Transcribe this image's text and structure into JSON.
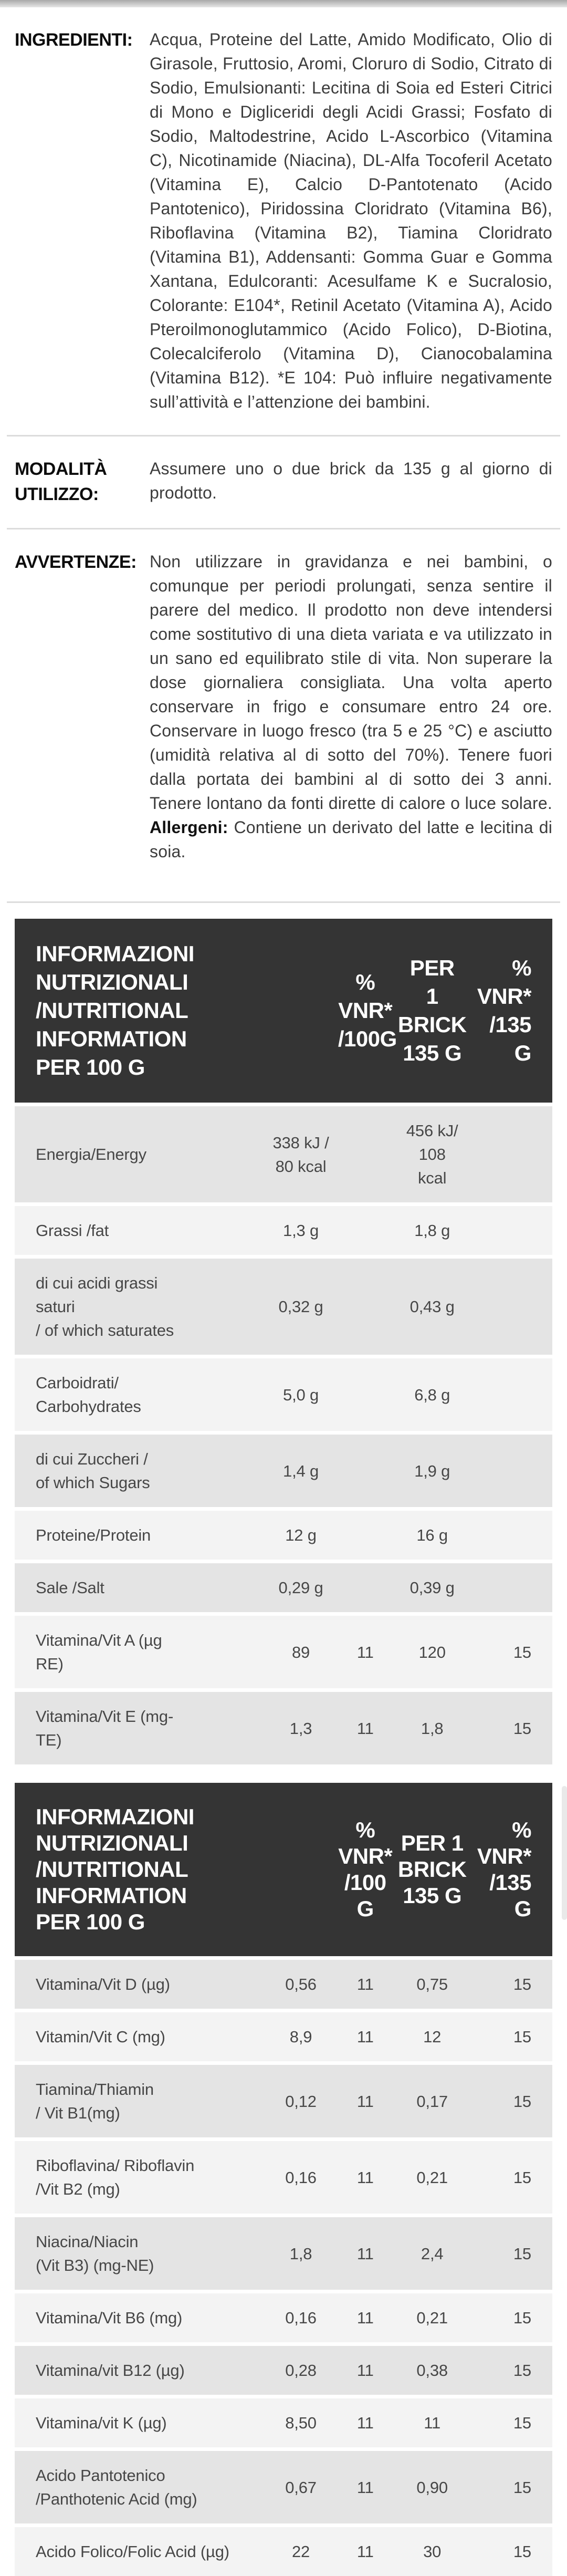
{
  "sections": {
    "ingredienti": {
      "label": "INGREDIENTI:",
      "text": "Acqua, Proteine del Latte, Amido Modificato, Olio di Girasole, Fruttosio, Aromi, Cloruro di Sodio, Citrato di Sodio, Emulsionanti: Lecitina di Soia ed Esteri Citrici di Mono e Digliceridi degli Acidi Grassi; Fosfato di Sodio, Maltodestrine, Acido L-Ascorbico (Vitamina C), Nicotinamide (Niacina), DL-Alfa Tocoferil Acetato (Vitamina E), Calcio D-Pantotenato (Acido Pantotenico), Piridossina Cloridrato (Vitamina B6), Riboflavina (Vitamina B2), Tiamina Cloridrato (Vitamina B1), Addensanti: Gomma Guar e Gomma Xantana, Edulcoranti: Acesulfame K e Sucralosio, Colorante: E104*, Retinil Acetato (Vitamina A), Acido Pteroilmonoglutammico (Acido Folico), D-Biotina, Colecalciferolo (Vitamina D), Cianocobalamina (Vitamina B12). *E 104: Può influire negativamente sull’attività e l’attenzione dei bambini."
    },
    "modalita": {
      "label": "MODALITÀ UTILIZZO:",
      "text": "Assumere uno o due brick da 135 g al giorno di prodotto."
    },
    "avvertenze": {
      "label": "AVVERTENZE:",
      "text": "Non utilizzare in gravidanza e nei bambini, o comunque per periodi prolungati, senza sentire il parere del medico. Il prodotto non deve intendersi come sostitutivo di una dieta variata e va utilizzato in un sano ed equilibrato stile di vita. Non superare la dose giornaliera consigliata. Una volta aperto conservare in frigo e consumare entro 24 ore. Conservare in luogo fresco (tra 5 e 25 °C) e asciutto (umidità relativa al di sotto del 70%). Tenere fuori dalla portata dei bambini al di sotto dei 3 anni. Tenere lontano da fonti dirette di calore o luce solare. ",
      "allergeni_label": "Allergeni:",
      "allergeni_text": " Contiene un derivato del latte e lecitina di soia."
    }
  },
  "tables": [
    {
      "header": {
        "main": "INFORMAZIONI NUTRIZIONALI\n/NUTRITIONAL INFORMATION\nPER 100 G",
        "vnr100": "%\nVNR*\n/100G",
        "brick": "PER\n1 BRICK\n135 G",
        "vnr135": "%\nVNR*\n/135 G"
      },
      "rows": [
        {
          "label": "Energia/Energy",
          "per100": "338 kJ /\n80 kcal",
          "vnr100": "",
          "brick": "456 kJ/ 108\nkcal",
          "vnr135": ""
        },
        {
          "label": "Grassi /fat",
          "per100": "1,3 g",
          "vnr100": "",
          "brick": "1,8 g",
          "vnr135": ""
        },
        {
          "label": "di cui acidi grassi\nsaturi\n/ of which saturates",
          "per100": "0,32 g",
          "vnr100": "",
          "brick": "0,43 g",
          "vnr135": ""
        },
        {
          "label": "Carboidrati/\nCarbohydrates",
          "per100": "5,0 g",
          "vnr100": "",
          "brick": "6,8 g",
          "vnr135": ""
        },
        {
          "label": "di cui Zuccheri /\nof which Sugars",
          "per100": "1,4 g",
          "vnr100": "",
          "brick": "1,9 g",
          "vnr135": ""
        },
        {
          "label": "Proteine/Protein",
          "per100": "12 g",
          "vnr100": "",
          "brick": "16 g",
          "vnr135": ""
        },
        {
          "label": "Sale /Salt",
          "per100": "0,29 g",
          "vnr100": "",
          "brick": "0,39 g",
          "vnr135": ""
        },
        {
          "label": "Vitamina/Vit A (µg\nRE)",
          "per100": "89",
          "vnr100": "11",
          "brick": "120",
          "vnr135": "15"
        },
        {
          "label": "Vitamina/Vit E (mg-\nTE)",
          "per100": "1,3",
          "vnr100": "11",
          "brick": "1,8",
          "vnr135": "15"
        }
      ]
    },
    {
      "header": {
        "main": "INFORMAZIONI NUTRIZIONALI\n/NUTRITIONAL INFORMATION\nPER 100 G",
        "vnr100": "%\nVNR*\n/100\nG",
        "brick": "PER 1\nBRICK\n135 G",
        "vnr135": "% VNR*\n/135 G"
      },
      "rows": [
        {
          "label": "Vitamina/Vit D (µg)",
          "per100": "0,56",
          "vnr100": "11",
          "brick": "0,75",
          "vnr135": "15"
        },
        {
          "label": "Vitamin/Vit C (mg)",
          "per100": "8,9",
          "vnr100": "11",
          "brick": "12",
          "vnr135": "15"
        },
        {
          "label": "Tiamina/Thiamin\n/ Vit B1(mg)",
          "per100": "0,12",
          "vnr100": "11",
          "brick": "0,17",
          "vnr135": "15"
        },
        {
          "label": "Riboflavina/ Riboflavin\n/Vit B2 (mg)",
          "per100": "0,16",
          "vnr100": "11",
          "brick": "0,21",
          "vnr135": "15"
        },
        {
          "label": "Niacina/Niacin\n(Vit B3) (mg-NE)",
          "per100": "1,8",
          "vnr100": "11",
          "brick": "2,4",
          "vnr135": "15"
        },
        {
          "label": "Vitamina/Vit B6 (mg)",
          "per100": "0,16",
          "vnr100": "11",
          "brick": "0,21",
          "vnr135": "15"
        },
        {
          "label": "Vitamina/vit B12 (µg)",
          "per100": "0,28",
          "vnr100": "11",
          "brick": "0,38",
          "vnr135": "15"
        },
        {
          "label": "Vitamina/vit K (µg)",
          "per100": "8,50",
          "vnr100": "11",
          "brick": "11",
          "vnr135": "15"
        },
        {
          "label": "Acido Pantotenico\n/Panthotenic Acid (mg)",
          "per100": "0,67",
          "vnr100": "11",
          "brick": "0,90",
          "vnr135": "15"
        },
        {
          "label": "Acido Folico/Folic Acid (µg)",
          "per100": "22",
          "vnr100": "11",
          "brick": "30",
          "vnr135": "15"
        }
      ]
    }
  ],
  "colors": {
    "header_bg": "#343434",
    "row_dark": "#e4e4e4",
    "row_light": "#f3f3f3",
    "divider": "#dcdcdc"
  }
}
